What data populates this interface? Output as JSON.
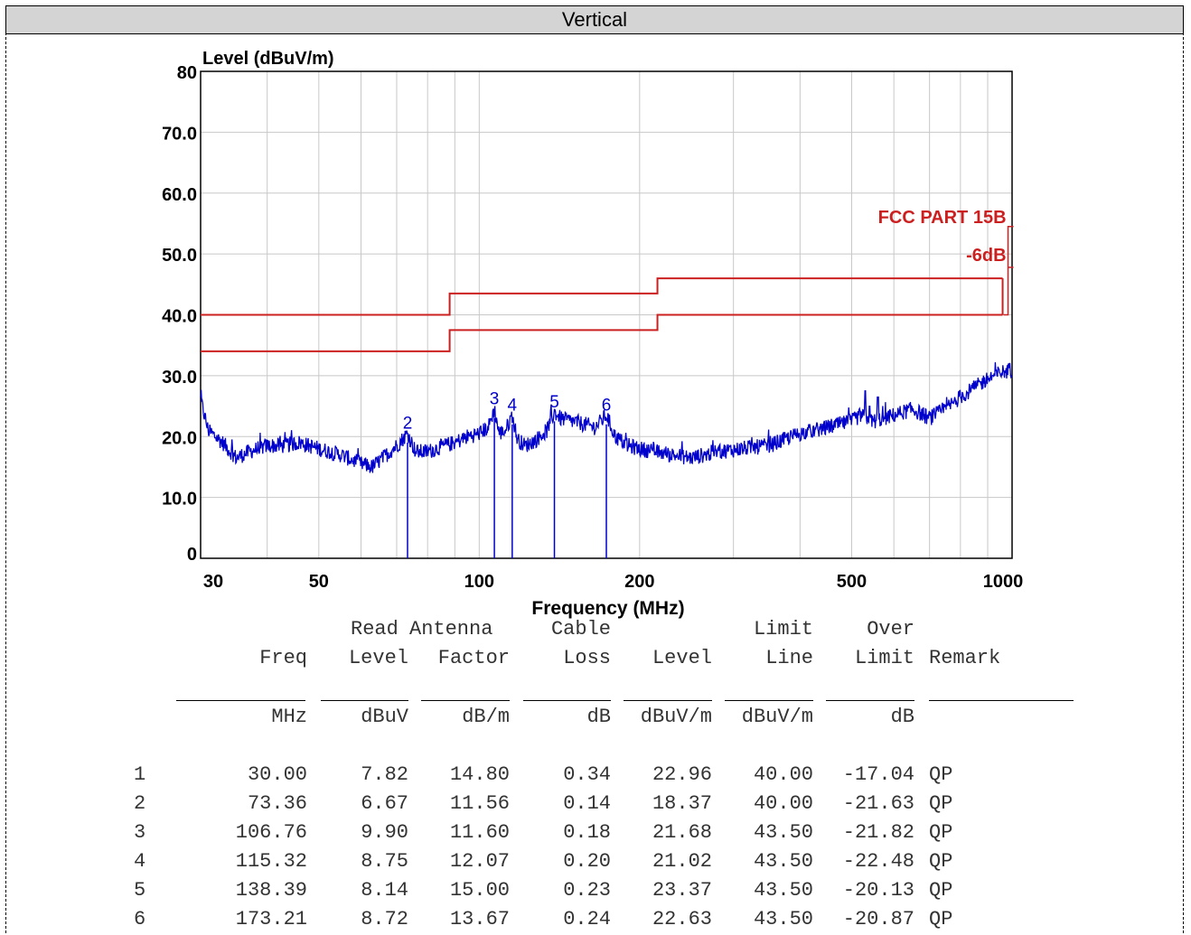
{
  "header": {
    "title": "Vertical"
  },
  "chart_data": {
    "type": "line",
    "ylabel": "Level (dBuV/m)",
    "xlabel": "Frequency (MHz)",
    "xscale": "log",
    "xlim": [
      30,
      1000
    ],
    "ylim": [
      0,
      80
    ],
    "x_tick_labels": [
      "30",
      "50",
      "100",
      "200",
      "500",
      "1000"
    ],
    "y_tick_labels": [
      "0",
      "10.0",
      "20.0",
      "30.0",
      "40.0",
      "50.0",
      "60.0",
      "70.0",
      "80"
    ],
    "grid": true,
    "colors": {
      "limit": "#cc2020",
      "trace": "#0000cc",
      "grid": "#c8c8c8"
    },
    "limits": [
      {
        "label": "FCC PART 15B",
        "segments": [
          [
            30,
            88,
            40.0
          ],
          [
            88,
            216,
            43.5
          ],
          [
            216,
            960,
            46.0
          ]
        ]
      },
      {
        "label": "-6dB",
        "segments": [
          [
            30,
            88,
            34.0
          ],
          [
            88,
            216,
            37.5
          ],
          [
            216,
            960,
            40.0
          ]
        ]
      }
    ],
    "markers": [
      {
        "label": "1",
        "freq": 30.0,
        "level": 22.96
      },
      {
        "label": "2",
        "freq": 73.36,
        "level": 18.37
      },
      {
        "label": "3",
        "freq": 106.76,
        "level": 21.68
      },
      {
        "label": "4",
        "freq": 115.32,
        "level": 21.02
      },
      {
        "label": "5",
        "freq": 138.39,
        "level": 23.37
      },
      {
        "label": "6",
        "freq": 173.21,
        "level": 22.63
      }
    ],
    "trace_anchors": [
      [
        30,
        26
      ],
      [
        31,
        21
      ],
      [
        33,
        19
      ],
      [
        35,
        16.5
      ],
      [
        37,
        17.5
      ],
      [
        40,
        18.5
      ],
      [
        43,
        18.5
      ],
      [
        46,
        19
      ],
      [
        50,
        18
      ],
      [
        55,
        17
      ],
      [
        60,
        15.5
      ],
      [
        63,
        15
      ],
      [
        66,
        16.5
      ],
      [
        70,
        18.5
      ],
      [
        73.36,
        20.5
      ],
      [
        76,
        17.5
      ],
      [
        80,
        17.5
      ],
      [
        86,
        18.5
      ],
      [
        90,
        19
      ],
      [
        95,
        20
      ],
      [
        100,
        20.5
      ],
      [
        104,
        21.5
      ],
      [
        106.76,
        24.5
      ],
      [
        109,
        20.5
      ],
      [
        112,
        21
      ],
      [
        115.32,
        23.5
      ],
      [
        118,
        19.5
      ],
      [
        122,
        18.5
      ],
      [
        128,
        19.5
      ],
      [
        134,
        21
      ],
      [
        138.39,
        24
      ],
      [
        142,
        23
      ],
      [
        150,
        22.5
      ],
      [
        158,
        22
      ],
      [
        165,
        21.5
      ],
      [
        173.21,
        23.5
      ],
      [
        180,
        20
      ],
      [
        190,
        18.5
      ],
      [
        200,
        18
      ],
      [
        215,
        17.5
      ],
      [
        230,
        17
      ],
      [
        250,
        16.5
      ],
      [
        280,
        17.5
      ],
      [
        310,
        18
      ],
      [
        350,
        18.5
      ],
      [
        400,
        20.5
      ],
      [
        450,
        21.5
      ],
      [
        500,
        22.5
      ],
      [
        520,
        23.5
      ],
      [
        550,
        22.5
      ],
      [
        600,
        23.5
      ],
      [
        650,
        24.5
      ],
      [
        700,
        23
      ],
      [
        750,
        24.5
      ],
      [
        800,
        26.5
      ],
      [
        850,
        28
      ],
      [
        900,
        29.5
      ],
      [
        950,
        30.5
      ],
      [
        1000,
        31
      ]
    ],
    "trace_spikes": [
      [
        530,
        27.5
      ],
      [
        540,
        25
      ],
      [
        560,
        26.5
      ],
      [
        990,
        32
      ]
    ]
  },
  "table": {
    "header_top": [
      "",
      "",
      "Read",
      "Antenna",
      "Cable",
      "",
      "Limit",
      "Over",
      ""
    ],
    "header_bottom": [
      "",
      "Freq",
      "Level",
      "Factor",
      "Loss",
      "Level",
      "Line",
      "Limit",
      "Remark"
    ],
    "units": [
      "",
      "MHz",
      "dBuV",
      "dB/m",
      "dB",
      "dBuV/m",
      "dBuV/m",
      "dB",
      ""
    ],
    "rows": [
      [
        "1",
        "30.00",
        "7.82",
        "14.80",
        "0.34",
        "22.96",
        "40.00",
        "-17.04",
        "QP"
      ],
      [
        "2",
        "73.36",
        "6.67",
        "11.56",
        "0.14",
        "18.37",
        "40.00",
        "-21.63",
        "QP"
      ],
      [
        "3",
        "106.76",
        "9.90",
        "11.60",
        "0.18",
        "21.68",
        "43.50",
        "-21.82",
        "QP"
      ],
      [
        "4",
        "115.32",
        "8.75",
        "12.07",
        "0.20",
        "21.02",
        "43.50",
        "-22.48",
        "QP"
      ],
      [
        "5",
        "138.39",
        "8.14",
        "15.00",
        "0.23",
        "23.37",
        "43.50",
        "-20.13",
        "QP"
      ],
      [
        "6",
        "173.21",
        "8.72",
        "13.67",
        "0.24",
        "22.63",
        "43.50",
        "-20.87",
        "QP"
      ]
    ]
  }
}
